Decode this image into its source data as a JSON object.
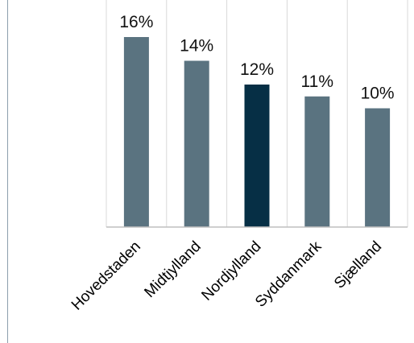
{
  "chart_data": {
    "type": "bar",
    "categories": [
      "Hovedstaden",
      "Midtjylland",
      "Nordjylland",
      "Syddanmark",
      "Sjælland"
    ],
    "values": [
      16,
      14,
      12,
      11,
      10
    ],
    "value_labels": [
      "16%",
      "14%",
      "12%",
      "11%",
      "10%"
    ],
    "highlight_index": 2,
    "ylim": [
      0,
      20
    ],
    "grid": "vertical separators only",
    "legend": "none",
    "colors": {
      "bar": "#5a7380",
      "highlight": "#062f45",
      "grid": "#d9d9d9",
      "axis": "#bfbfbf"
    }
  }
}
